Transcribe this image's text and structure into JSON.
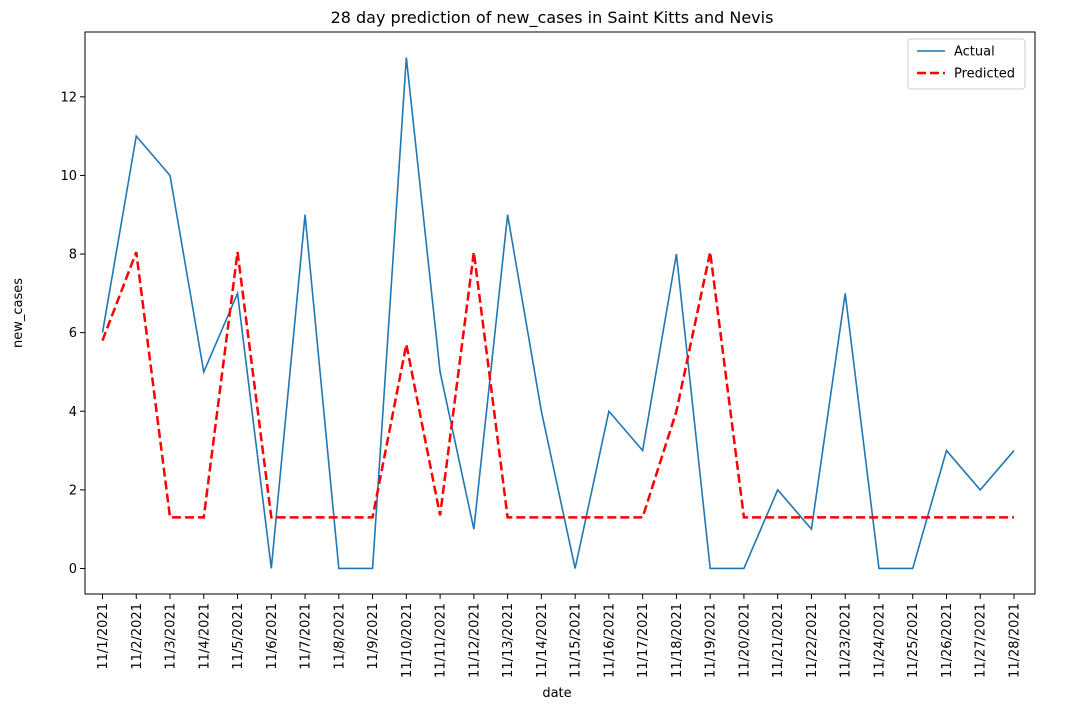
{
  "chart_data": {
    "type": "line",
    "title": "28 day prediction of new_cases in Saint Kitts and Nevis",
    "xlabel": "date",
    "ylabel": "new_cases",
    "x": [
      "11/1/2021",
      "11/2/2021",
      "11/3/2021",
      "11/4/2021",
      "11/5/2021",
      "11/6/2021",
      "11/7/2021",
      "11/8/2021",
      "11/9/2021",
      "11/10/2021",
      "11/11/2021",
      "11/12/2021",
      "11/13/2021",
      "11/14/2021",
      "11/15/2021",
      "11/16/2021",
      "11/17/2021",
      "11/18/2021",
      "11/19/2021",
      "11/20/2021",
      "11/21/2021",
      "11/22/2021",
      "11/23/2021",
      "11/24/2021",
      "11/25/2021",
      "11/26/2021",
      "11/27/2021",
      "11/28/2021"
    ],
    "yticks": [
      0,
      2,
      4,
      6,
      8,
      10,
      12
    ],
    "ylim": [
      -0.65,
      13.65
    ],
    "grid": false,
    "legend_position": "top-right",
    "series": [
      {
        "name": "Actual",
        "color": "#1f77b4",
        "style": "solid",
        "values": [
          6,
          11,
          10,
          5,
          7,
          0,
          9,
          0,
          0,
          13,
          5,
          1,
          9,
          4,
          0,
          4,
          3,
          8,
          0,
          0,
          2,
          1,
          7,
          0,
          0,
          3,
          2,
          3
        ]
      },
      {
        "name": "Predicted",
        "color": "#ff0000",
        "style": "dashed",
        "values": [
          5.8,
          8.05,
          1.3,
          1.3,
          8.05,
          1.3,
          1.3,
          1.3,
          1.3,
          5.7,
          1.35,
          8.05,
          1.3,
          1.3,
          1.3,
          1.3,
          1.3,
          4.0,
          8.05,
          1.3,
          1.3,
          1.3,
          1.3,
          1.3,
          1.3,
          1.3,
          1.3,
          1.3
        ]
      }
    ]
  }
}
